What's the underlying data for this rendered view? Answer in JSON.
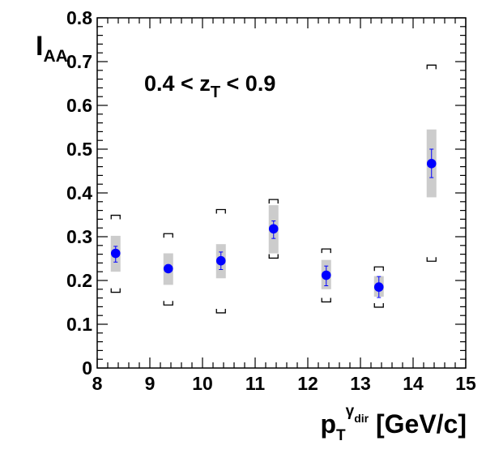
{
  "chart_data": {
    "type": "scatter",
    "title": "",
    "annotation": {
      "prefix": "0.4 < z",
      "subscript": "T",
      "suffix": " < 0.9"
    },
    "ylabel": {
      "main": "I",
      "subscript": "AA"
    },
    "xlabel": {
      "main": "p",
      "subscript": "T",
      "superscript": "γ",
      "superscript_sub": "dir",
      "unit": " [GeV/c]"
    },
    "xlim": [
      8,
      15
    ],
    "ylim": [
      0,
      0.8
    ],
    "x_ticks": [
      8,
      9,
      10,
      11,
      12,
      13,
      14,
      15
    ],
    "y_ticks": [
      0,
      0.1,
      0.2,
      0.3,
      0.4,
      0.5,
      0.6,
      0.7,
      0.8
    ],
    "x_tick_labels": [
      "8",
      "9",
      "10",
      "11",
      "12",
      "13",
      "14",
      "15"
    ],
    "y_tick_labels": [
      "0",
      "0.1",
      "0.2",
      "0.3",
      "0.4",
      "0.5",
      "0.6",
      "0.7",
      "0.8"
    ],
    "grid": false,
    "series": [
      {
        "marker_color": "#0000ff",
        "box_color": "#cccccc",
        "bracket_color": "#000000",
        "points": [
          {
            "x": 8.35,
            "y": 0.262,
            "err_lo": 0.242,
            "err_hi": 0.278,
            "box_lo": 0.22,
            "box_hi": 0.302,
            "br_lo": 0.173,
            "br_hi": 0.349
          },
          {
            "x": 9.35,
            "y": 0.227,
            "err_lo": 0.222,
            "err_hi": 0.232,
            "box_lo": 0.19,
            "box_hi": 0.262,
            "br_lo": 0.144,
            "br_hi": 0.307
          },
          {
            "x": 10.35,
            "y": 0.245,
            "err_lo": 0.225,
            "err_hi": 0.265,
            "box_lo": 0.205,
            "box_hi": 0.283,
            "br_lo": 0.126,
            "br_hi": 0.362
          },
          {
            "x": 11.35,
            "y": 0.318,
            "err_lo": 0.296,
            "err_hi": 0.336,
            "box_lo": 0.262,
            "box_hi": 0.372,
            "br_lo": 0.251,
            "br_hi": 0.385
          },
          {
            "x": 12.35,
            "y": 0.212,
            "err_lo": 0.188,
            "err_hi": 0.233,
            "box_lo": 0.18,
            "box_hi": 0.247,
            "br_lo": 0.151,
            "br_hi": 0.272
          },
          {
            "x": 13.35,
            "y": 0.185,
            "err_lo": 0.161,
            "err_hi": 0.209,
            "box_lo": 0.163,
            "box_hi": 0.21,
            "br_lo": 0.139,
            "br_hi": 0.231
          },
          {
            "x": 14.35,
            "y": 0.467,
            "err_lo": 0.435,
            "err_hi": 0.5,
            "box_lo": 0.39,
            "box_hi": 0.545,
            "br_lo": 0.244,
            "br_hi": 0.692
          }
        ]
      }
    ]
  }
}
